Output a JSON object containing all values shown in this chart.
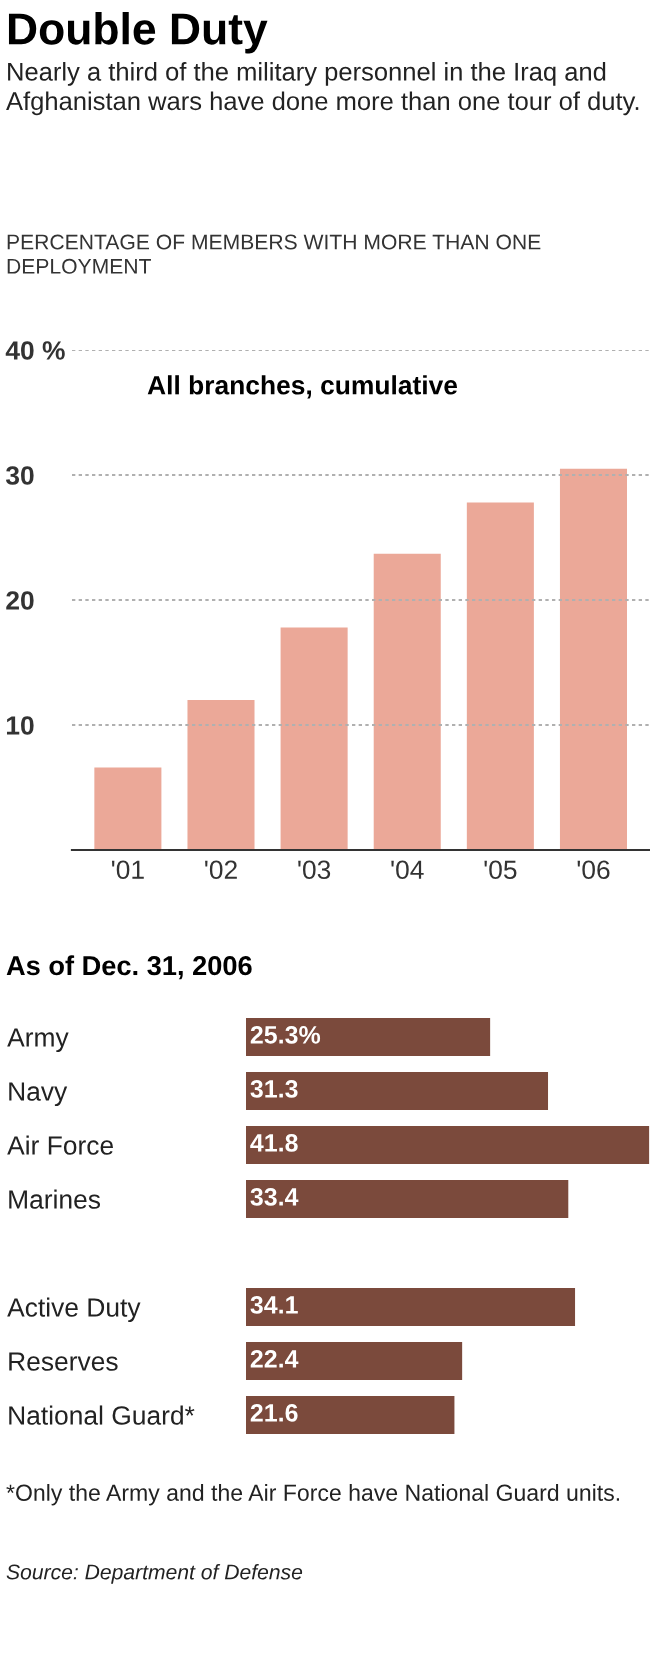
{
  "chart_data": [
    {
      "type": "bar",
      "title": "Double Duty",
      "subtitle": "Nearly a third of the military personnel in the Iraq and Afghanistan wars have done more than one tour of duty.",
      "ylabel": "PERCENTAGE OF MEMBERS WITH MORE THAN ONE DEPLOYMENT",
      "annotations": [
        "All branches, cumulative"
      ],
      "categories": [
        "'01",
        "'02",
        "'03",
        "'04",
        "'05",
        "'06"
      ],
      "values": [
        6.6,
        12.0,
        17.8,
        23.7,
        27.8,
        30.5
      ],
      "color": "#eba898",
      "ylim": [
        0,
        40
      ],
      "yticks": [
        10,
        20,
        30,
        {
          "value": 40,
          "label": "40 %"
        }
      ],
      "grid": "y"
    },
    {
      "type": "bar",
      "orientation": "horizontal",
      "title": "As of Dec. 31, 2006",
      "annotations": [
        "*Only the Army and the Air Force have National Guard units.",
        "Source: Department of Defense"
      ],
      "categories": [
        "Army",
        "Navy",
        "Air Force",
        "Marines",
        null,
        "Active Duty",
        "Reserves",
        "National Guard*"
      ],
      "values": [
        25.3,
        31.3,
        41.8,
        33.4,
        null,
        34.1,
        22.4,
        21.6
      ],
      "value_labels": [
        "25.3%",
        "31.3",
        "41.8",
        "33.4",
        null,
        "34.1",
        "22.4",
        "21.6"
      ],
      "color": "#7b4a3c",
      "tick_labels": "y"
    }
  ]
}
